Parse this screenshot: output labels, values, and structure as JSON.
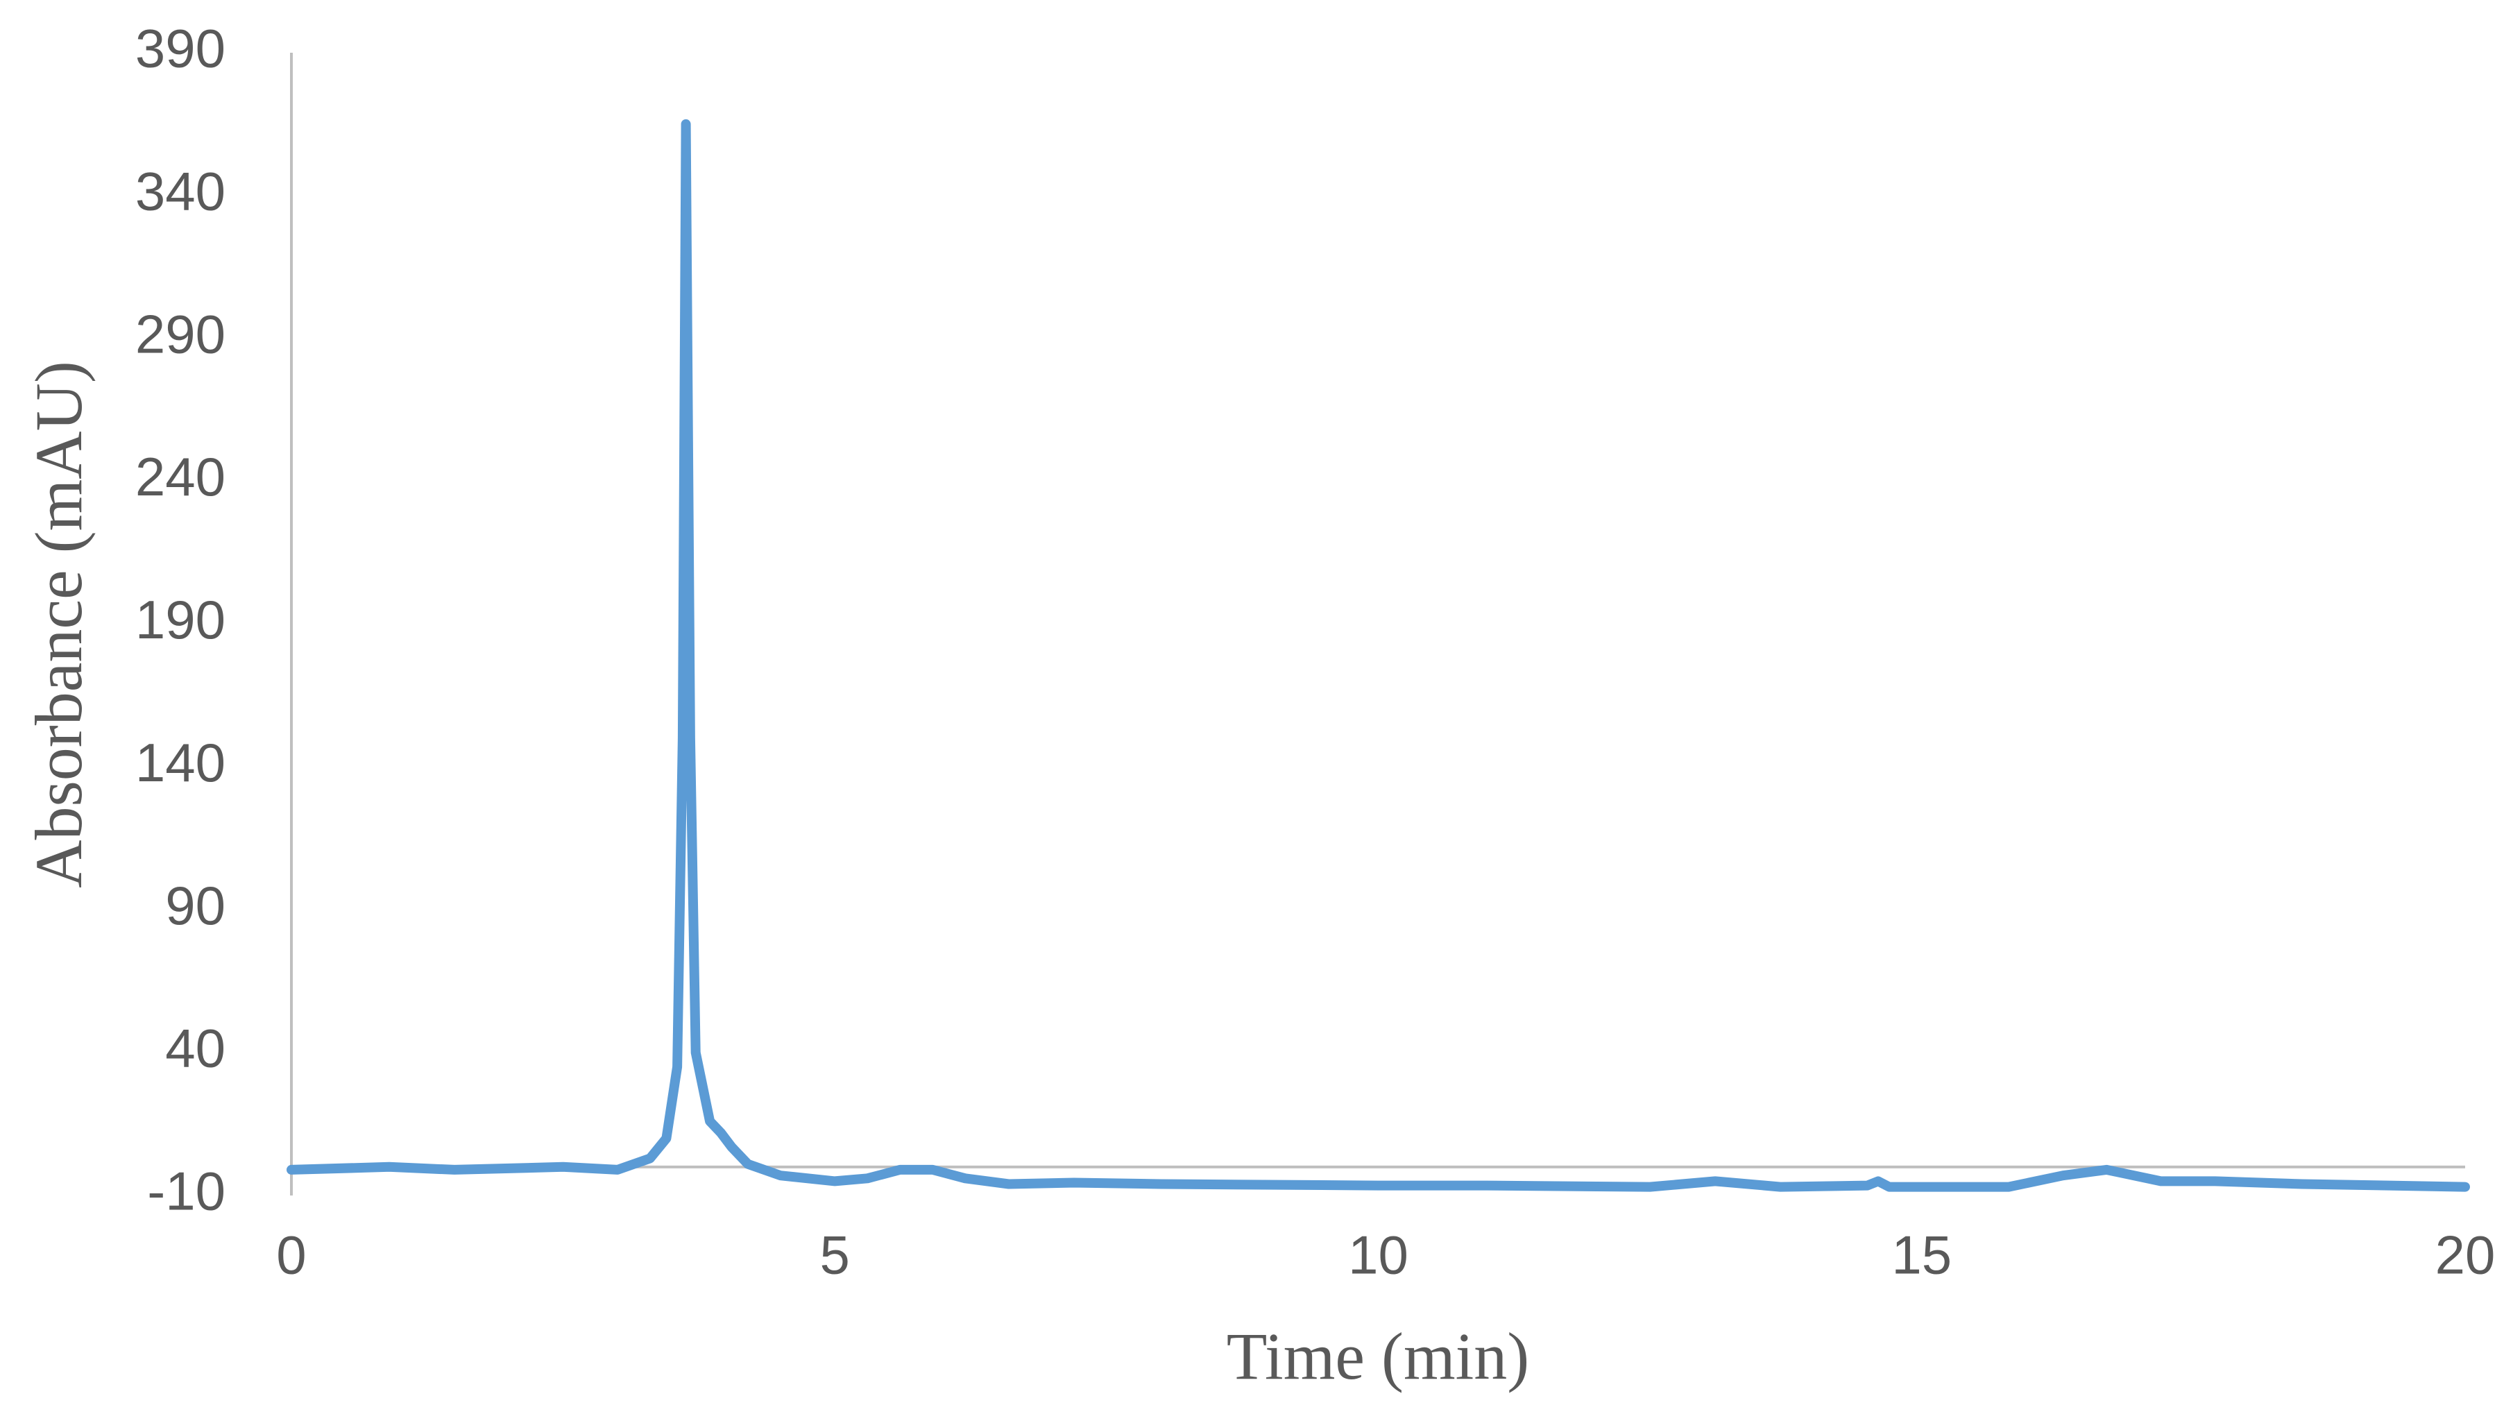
{
  "chart_data": {
    "type": "line",
    "x_label": "Time (min)",
    "y_label": "Absorbance (mAU)",
    "x": [
      0,
      0.9,
      1.5,
      2.5,
      3.0,
      3.3,
      3.45,
      3.55,
      3.6,
      3.63,
      3.67,
      3.72,
      3.85,
      3.95,
      4.05,
      4.2,
      4.5,
      5.0,
      5.3,
      5.6,
      5.9,
      6.2,
      6.6,
      7.2,
      8.0,
      10.0,
      11.0,
      12.5,
      13.1,
      13.7,
      14.5,
      14.6,
      14.7,
      15.8,
      16.3,
      16.7,
      17.2,
      17.7,
      18.5,
      19.3,
      20.0
    ],
    "values": [
      -1,
      0,
      -1,
      0,
      -1,
      3,
      10,
      35,
      150,
      365,
      150,
      40,
      16,
      12,
      7,
      1,
      -3,
      -5,
      -4,
      -1,
      -1,
      -4,
      -6,
      -5.5,
      -6,
      -6.5,
      -6.5,
      -7,
      -5,
      -7,
      -6.5,
      -5,
      -7,
      -7,
      -3,
      -1,
      -5,
      -5,
      -6,
      -6.5,
      -7
    ],
    "color": "#5b9bd5",
    "xlim": [
      0,
      20
    ],
    "xticks": [
      0,
      5,
      10,
      15,
      20
    ],
    "ylim": [
      -10,
      390
    ],
    "yticks": [
      -10,
      40,
      90,
      140,
      190,
      240,
      290,
      340,
      390
    ],
    "grid": false
  }
}
